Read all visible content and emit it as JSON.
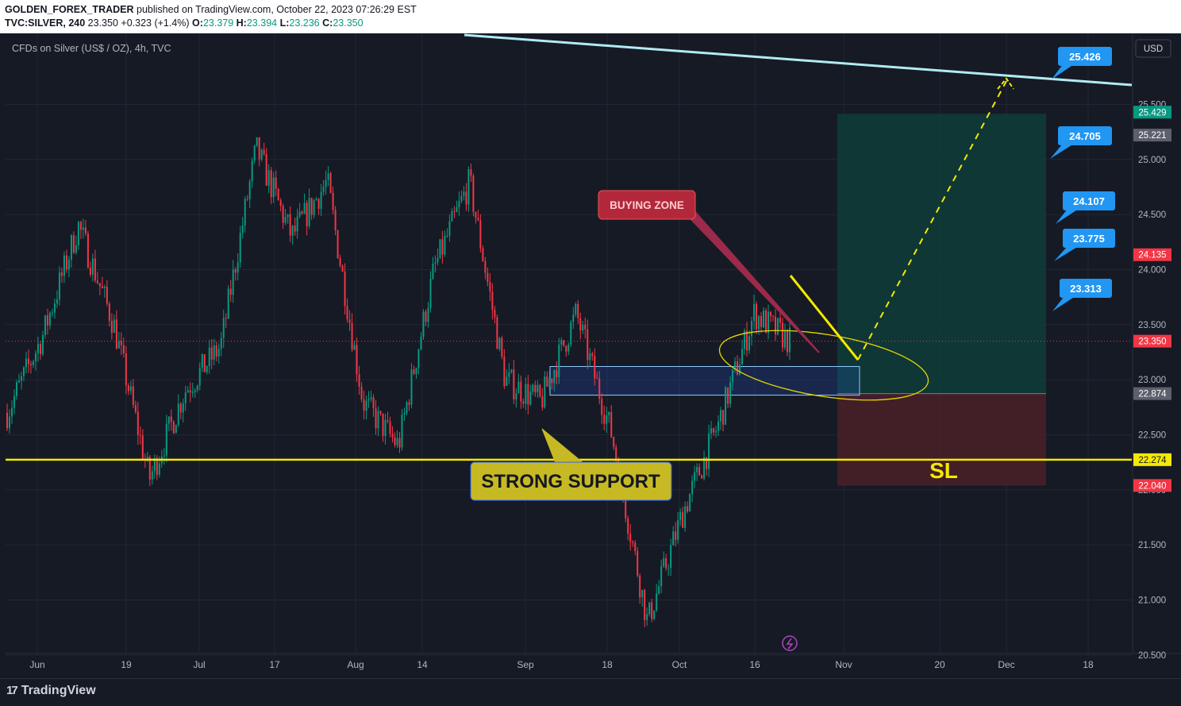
{
  "header": {
    "publisher": "GOLDEN_FOREX_TRADER",
    "published_text": "published on TradingView.com, October 22, 2023 07:26:29 EST",
    "symbol": "TVC:SILVER, 240",
    "last": "23.350",
    "change": "+0.323 (+1.4%)",
    "o_label": "O:",
    "o": "23.379",
    "h_label": "H:",
    "h": "23.394",
    "l_label": "L:",
    "l": "23.236",
    "c_label": "C:",
    "c": "23.350"
  },
  "chart_title": "CFDs on Silver (US$ / OZ), 4h, TVC",
  "currency": "USD",
  "footer": {
    "brand": "TradingView"
  },
  "chart_data": {
    "type": "candlestick",
    "symbol": "TVC:SILVER",
    "timeframe": "4h",
    "ylim": [
      20.2,
      25.6
    ],
    "y_ticks": [
      "25.500",
      "25.000",
      "24.500",
      "24.000",
      "23.500",
      "23.000",
      "22.500",
      "22.000",
      "21.500",
      "21.000",
      "20.500"
    ],
    "x_ticks": [
      "Jun",
      "19",
      "Jul",
      "17",
      "Aug",
      "14",
      "Sep",
      "18",
      "Oct",
      "16",
      "Nov",
      "20",
      "Dec",
      "18"
    ],
    "swing_path_values": [
      {
        "t": "Jun",
        "v": 22.7
      },
      {
        "t": "early Jun",
        "v": 23.4
      },
      {
        "t": "mid Jun",
        "v": 24.4
      },
      {
        "t": "19",
        "v": 23.5
      },
      {
        "t": "late Jun",
        "v": 22.1
      },
      {
        "t": "Jul",
        "v": 22.9
      },
      {
        "t": "mid Jul",
        "v": 23.3
      },
      {
        "t": "17",
        "v": 25.1
      },
      {
        "t": "late Jul",
        "v": 24.3
      },
      {
        "t": "Aug",
        "v": 24.8
      },
      {
        "t": "mid Aug",
        "v": 22.8
      },
      {
        "t": "14",
        "v": 22.4
      },
      {
        "t": "late Aug",
        "v": 24.0
      },
      {
        "t": "Sep",
        "v": 24.8
      },
      {
        "t": "early Sep",
        "v": 23.0
      },
      {
        "t": "18",
        "v": 22.8
      },
      {
        "t": "late Sep",
        "v": 23.6
      },
      {
        "t": "Oct",
        "v": 22.5
      },
      {
        "t": "early Oct",
        "v": 20.8
      },
      {
        "t": "mid Oct",
        "v": 21.8
      },
      {
        "t": "16",
        "v": 22.6
      },
      {
        "t": "Oct 20",
        "v": 23.6
      },
      {
        "t": "Oct 22",
        "v": 23.35
      }
    ],
    "price_labels": [
      {
        "value": "25.429",
        "color": "#089981"
      },
      {
        "value": "25.221",
        "color": "#5d606b"
      },
      {
        "value": "24.135",
        "color": "#f23645"
      },
      {
        "value": "23.350",
        "color": "#f23645"
      },
      {
        "value": "22.874",
        "color": "#5d606b"
      },
      {
        "value": "22.274",
        "color": "#f5e900"
      },
      {
        "value": "22.040",
        "color": "#f23645"
      }
    ],
    "target_callouts": [
      "25.426",
      "24.705",
      "24.107",
      "23.775",
      "23.313"
    ],
    "annotations": {
      "buying_zone": "BUYING ZONE",
      "strong_support": "STRONG SUPPORT",
      "stop_loss": "SL"
    },
    "levels": {
      "support": 22.274,
      "buy_zone_top": 23.12,
      "buy_zone_bottom": 22.86,
      "entry": 22.874,
      "take_profit": 25.429,
      "stop_loss": 22.04,
      "current": 23.35
    },
    "colors": {
      "up": "#089981",
      "down": "#f23645",
      "support": "#f5e900",
      "trendline": "#b2ebf2",
      "profit_zone": "#0f3d3a",
      "loss_zone": "#4a2127",
      "callout": "#2196f3"
    },
    "grid": true
  }
}
